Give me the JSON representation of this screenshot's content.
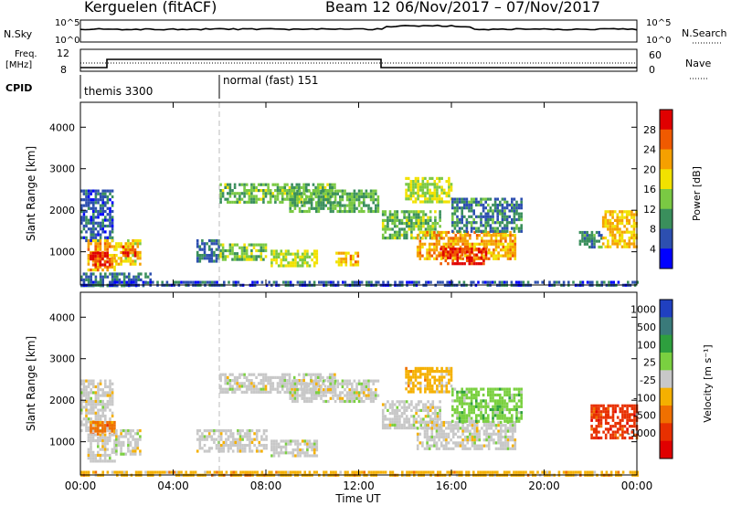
{
  "header": {
    "title": "Kerguelen (fitACF)",
    "subtitle": "Beam 12  06/Nov/2017 – 07/Nov/2017"
  },
  "top_panels": {
    "nsky": {
      "label": "N.Sky",
      "right_label": "N.Search",
      "tick_top": "10^5",
      "tick_bottom": "10^0"
    },
    "freq": {
      "label_line1": "Freq.",
      "label_line2": "[MHz]",
      "tick_top": "12",
      "tick_bottom": "8",
      "right_label": "Nave",
      "rtick_top": "60",
      "rtick_bottom": "0"
    },
    "cpid": {
      "label": "CPID",
      "segments": [
        "themis 3300",
        "normal (fast) 151"
      ]
    }
  },
  "chart_data": [
    {
      "type": "heatmap",
      "name": "power",
      "ylabel": "Slant Range [km]",
      "yticks": [
        "1000",
        "2000",
        "3000",
        "4000"
      ],
      "ylim": [
        200,
        4600
      ],
      "colorbar_label": "Power [dB]",
      "colorbar_ticks": [
        "4",
        "8",
        "12",
        "16",
        "20",
        "24",
        "28"
      ],
      "colors": [
        "#0000ff",
        "#2d4fb0",
        "#3a8f5c",
        "#7ac943",
        "#f2e200",
        "#f5a000",
        "#f05a00",
        "#e00000"
      ],
      "range": [
        0,
        32
      ],
      "regions": [
        {
          "t0": 0.0,
          "t1": 1.4,
          "r0": 1300,
          "r1": 2500,
          "v": 7
        },
        {
          "t0": 0.3,
          "t1": 1.5,
          "r0": 550,
          "r1": 1300,
          "v": 22
        },
        {
          "t0": 0.4,
          "t1": 1.3,
          "r0": 700,
          "r1": 1000,
          "v": 29
        },
        {
          "t0": 1.5,
          "t1": 2.6,
          "r0": 700,
          "r1": 1300,
          "v": 19
        },
        {
          "t0": 1.8,
          "t1": 2.4,
          "r0": 900,
          "r1": 1150,
          "v": 27
        },
        {
          "t0": 0.0,
          "t1": 3.0,
          "r0": 200,
          "r1": 500,
          "v": 8
        },
        {
          "t0": 5.0,
          "t1": 6.0,
          "r0": 800,
          "r1": 1300,
          "v": 8
        },
        {
          "t0": 6.0,
          "t1": 8.0,
          "r0": 800,
          "r1": 1200,
          "v": 14
        },
        {
          "t0": 8.2,
          "t1": 10.2,
          "r0": 650,
          "r1": 1050,
          "v": 16
        },
        {
          "t0": 6.0,
          "t1": 11.0,
          "r0": 2200,
          "r1": 2650,
          "v": 13
        },
        {
          "t0": 9.0,
          "t1": 12.8,
          "r0": 1950,
          "r1": 2500,
          "v": 12
        },
        {
          "t0": 11.0,
          "t1": 12.0,
          "r0": 700,
          "r1": 1000,
          "v": 21
        },
        {
          "t0": 13.0,
          "t1": 15.5,
          "r0": 1300,
          "r1": 2000,
          "v": 13
        },
        {
          "t0": 14.0,
          "t1": 16.0,
          "r0": 2200,
          "r1": 2800,
          "v": 16
        },
        {
          "t0": 14.5,
          "t1": 18.8,
          "r0": 800,
          "r1": 1500,
          "v": 22
        },
        {
          "t0": 15.5,
          "t1": 17.5,
          "r0": 700,
          "r1": 1100,
          "v": 29
        },
        {
          "t0": 16.0,
          "t1": 19.0,
          "r0": 1500,
          "r1": 2300,
          "v": 9
        },
        {
          "t0": 21.5,
          "t1": 22.5,
          "r0": 1100,
          "r1": 1500,
          "v": 10
        },
        {
          "t0": 22.5,
          "t1": 24.0,
          "r0": 1100,
          "r1": 2000,
          "v": 20
        },
        {
          "t0": 0.0,
          "t1": 24.0,
          "r0": 200,
          "r1": 300,
          "v": 6
        }
      ]
    },
    {
      "type": "heatmap",
      "name": "velocity",
      "ylabel": "Slant Range [km]",
      "yticks": [
        "1000",
        "2000",
        "3000",
        "4000"
      ],
      "ylim": [
        200,
        4600
      ],
      "colorbar_label": "Velocity [m s⁻¹]",
      "colorbar_ticks": [
        "1000",
        "500",
        "100",
        "25",
        "-25",
        "-100",
        "-500",
        "-1000"
      ],
      "colors": [
        "#2040c0",
        "#3a7a7a",
        "#2e9f3e",
        "#7ad040",
        "#c8c8c8",
        "#f5b000",
        "#f07000",
        "#e83000",
        "#e00000"
      ],
      "regions": [
        {
          "t0": 0.0,
          "t1": 1.4,
          "r0": 1300,
          "r1": 2500,
          "v": 4
        },
        {
          "t0": 0.4,
          "t1": 1.5,
          "r0": 1200,
          "r1": 1500,
          "v": 6
        },
        {
          "t0": 0.3,
          "t1": 1.5,
          "r0": 550,
          "r1": 1200,
          "v": 4
        },
        {
          "t0": 1.5,
          "t1": 2.6,
          "r0": 700,
          "r1": 1300,
          "v": 4
        },
        {
          "t0": 5.0,
          "t1": 8.0,
          "r0": 800,
          "r1": 1300,
          "v": 4
        },
        {
          "t0": 8.2,
          "t1": 10.2,
          "r0": 650,
          "r1": 1050,
          "v": 4
        },
        {
          "t0": 6.0,
          "t1": 11.0,
          "r0": 2200,
          "r1": 2650,
          "v": 4
        },
        {
          "t0": 9.0,
          "t1": 12.8,
          "r0": 1950,
          "r1": 2500,
          "v": 4
        },
        {
          "t0": 13.0,
          "t1": 15.5,
          "r0": 1300,
          "r1": 2000,
          "v": 4
        },
        {
          "t0": 14.0,
          "t1": 16.0,
          "r0": 2200,
          "r1": 2800,
          "v": 5
        },
        {
          "t0": 14.5,
          "t1": 18.8,
          "r0": 800,
          "r1": 1500,
          "v": 4
        },
        {
          "t0": 16.0,
          "t1": 19.0,
          "r0": 1500,
          "r1": 2300,
          "v": 3
        },
        {
          "t0": 22.0,
          "t1": 24.0,
          "r0": 1100,
          "r1": 1900,
          "v": 7
        },
        {
          "t0": 0.0,
          "t1": 24.0,
          "r0": 200,
          "r1": 300,
          "v": 5
        }
      ]
    }
  ],
  "xaxis": {
    "label": "Time UT",
    "ticks": [
      "00:00",
      "04:00",
      "08:00",
      "12:00",
      "16:00",
      "20:00",
      "00:00"
    ]
  }
}
